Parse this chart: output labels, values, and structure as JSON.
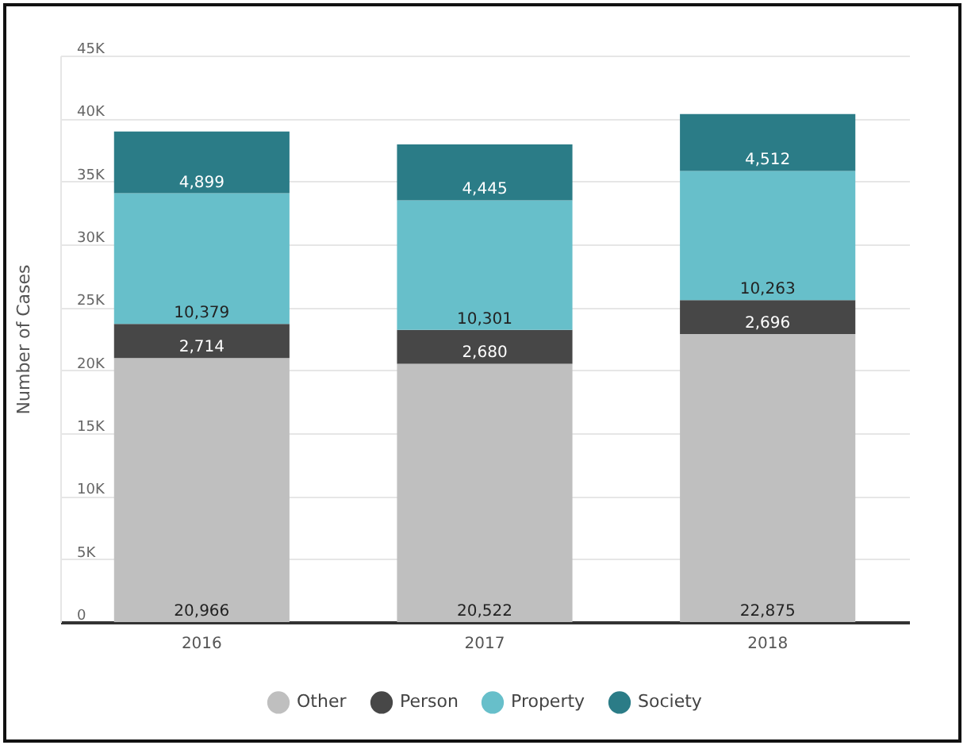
{
  "chart_data": {
    "type": "bar",
    "stacked": true,
    "ylabel": "Number of Cases",
    "categories": [
      "2016",
      "2017",
      "2018"
    ],
    "series": [
      {
        "name": "Other",
        "color": "#bfbfbf",
        "values": [
          20966,
          20522,
          22875
        ],
        "value_labels": [
          "20,966",
          "20,522",
          "22,875"
        ]
      },
      {
        "name": "Person",
        "color": "#474747",
        "values": [
          2714,
          2680,
          2696
        ],
        "value_labels": [
          "2,714",
          "2,680",
          "2,696"
        ]
      },
      {
        "name": "Property",
        "color": "#67bfca",
        "values": [
          10379,
          10301,
          10263
        ],
        "value_labels": [
          "10,379",
          "10,301",
          "10,263"
        ]
      },
      {
        "name": "Society",
        "color": "#2b7c87",
        "values": [
          4899,
          4445,
          4512
        ],
        "value_labels": [
          "4,899",
          "4,445",
          "4,512"
        ]
      }
    ],
    "ylim": [
      0,
      45000
    ],
    "yticks": [
      0,
      {
        "value": 5000,
        "label": "5K"
      },
      {
        "value": 10000,
        "label": "10K"
      },
      {
        "value": 15000,
        "label": "15K"
      },
      {
        "value": 20000,
        "label": "20K"
      },
      {
        "value": 25000,
        "label": "25K"
      },
      {
        "value": 30000,
        "label": "30K"
      },
      {
        "value": 35000,
        "label": "35K"
      },
      {
        "value": 40000,
        "label": "40K"
      },
      {
        "value": 45000,
        "label": "45K"
      }
    ],
    "grid": "y",
    "legend": "bottom",
    "data_labels": true
  }
}
